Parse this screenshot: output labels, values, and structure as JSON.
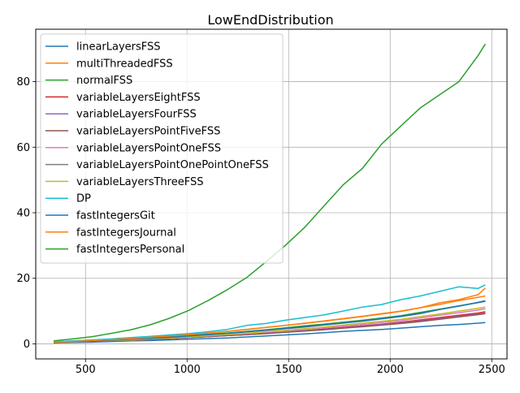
{
  "chart_data": {
    "type": "line",
    "title": "LowEndDistribution",
    "xlabel": "",
    "ylabel": "",
    "xlim": [
      255,
      2575
    ],
    "ylim": [
      -4.6,
      96
    ],
    "xticks": [
      500,
      1000,
      1500,
      2000,
      2500
    ],
    "yticks": [
      0,
      20,
      40,
      60,
      80
    ],
    "grid": true,
    "legend_position": "top-left",
    "x": [
      343,
      438,
      533,
      628,
      723,
      818,
      913,
      1008,
      1103,
      1198,
      1293,
      1388,
      1483,
      1578,
      1673,
      1768,
      1863,
      1958,
      2053,
      2148,
      2243,
      2338,
      2433,
      2468
    ],
    "series": [
      {
        "name": "linearLayersFSS",
        "color": "#1f77b4",
        "values": [
          0.3,
          0.4,
          0.5,
          0.7,
          0.9,
          1.0,
          1.2,
          1.4,
          1.6,
          1.8,
          2.1,
          2.4,
          2.7,
          3.0,
          3.4,
          3.8,
          4.1,
          4.4,
          4.8,
          5.2,
          5.6,
          5.9,
          6.3,
          6.5
        ]
      },
      {
        "name": "multiThreadedFSS",
        "color": "#ff7f0e",
        "values": [
          0.5,
          0.7,
          1.0,
          1.3,
          1.6,
          1.9,
          2.3,
          2.7,
          3.2,
          3.8,
          4.4,
          5.0,
          5.6,
          6.2,
          6.9,
          7.6,
          8.3,
          9.1,
          9.9,
          11.0,
          12.5,
          13.5,
          15.0,
          17.0
        ]
      },
      {
        "name": "normalFSS",
        "color": "#2ca02c",
        "values": [
          0.5,
          0.7,
          0.9,
          1.2,
          1.5,
          1.8,
          2.1,
          2.5,
          2.9,
          3.3,
          3.8,
          4.3,
          4.9,
          5.5,
          6.0,
          6.6,
          7.2,
          7.9,
          8.6,
          9.6,
          10.6,
          11.6,
          12.6,
          13.0
        ]
      },
      {
        "name": "variableLayersEightFSS",
        "color": "#d62728",
        "values": [
          0.4,
          0.5,
          0.7,
          0.9,
          1.1,
          1.3,
          1.6,
          1.9,
          2.2,
          2.5,
          2.8,
          3.2,
          3.6,
          4.0,
          4.5,
          5.0,
          5.5,
          6.0,
          6.6,
          7.3,
          8.0,
          8.7,
          9.4,
          9.8
        ]
      },
      {
        "name": "variableLayersFourFSS",
        "color": "#9467bd",
        "values": [
          0.4,
          0.5,
          0.7,
          0.9,
          1.1,
          1.3,
          1.6,
          1.9,
          2.2,
          2.5,
          2.8,
          3.2,
          3.6,
          4.0,
          4.4,
          4.9,
          5.4,
          5.9,
          6.4,
          7.0,
          7.7,
          8.4,
          9.1,
          9.4
        ]
      },
      {
        "name": "variableLayersPointFiveFSS",
        "color": "#8c564b",
        "values": [
          0.4,
          0.5,
          0.7,
          0.9,
          1.1,
          1.3,
          1.6,
          1.9,
          2.2,
          2.5,
          2.8,
          3.1,
          3.5,
          3.9,
          4.3,
          4.8,
          5.2,
          5.7,
          6.2,
          6.8,
          7.5,
          8.2,
          8.9,
          9.2
        ]
      },
      {
        "name": "variableLayersPointOneFSS",
        "color": "#e377c2",
        "values": [
          0.4,
          0.6,
          0.8,
          1.0,
          1.2,
          1.5,
          1.8,
          2.1,
          2.4,
          2.8,
          3.1,
          3.5,
          3.9,
          4.4,
          4.9,
          5.4,
          5.9,
          6.5,
          7.1,
          7.9,
          8.7,
          9.5,
          10.3,
          10.7
        ]
      },
      {
        "name": "variableLayersPointOnePointOneFSS",
        "color": "#7f7f7f",
        "values": [
          0.5,
          0.7,
          0.9,
          1.1,
          1.4,
          1.7,
          2.0,
          2.4,
          2.8,
          3.2,
          3.6,
          4.1,
          4.6,
          5.1,
          5.7,
          6.3,
          6.9,
          7.6,
          8.3,
          9.2,
          10.5,
          11.5,
          12.7,
          13.2
        ]
      },
      {
        "name": "variableLayersThreeFSS",
        "color": "#bcbd22",
        "values": [
          0.4,
          0.6,
          0.8,
          1.0,
          1.2,
          1.5,
          1.8,
          2.1,
          2.5,
          2.9,
          3.2,
          3.7,
          4.1,
          4.6,
          5.1,
          5.7,
          6.3,
          6.9,
          7.5,
          8.3,
          9.1,
          10.0,
          10.8,
          11.2
        ]
      },
      {
        "name": "DP",
        "color": "#17becf",
        "values": [
          0.6,
          0.9,
          1.2,
          1.5,
          1.9,
          2.3,
          2.7,
          3.1,
          3.7,
          4.4,
          5.6,
          6.2,
          7.2,
          8.0,
          8.8,
          10.0,
          11.2,
          12.0,
          13.5,
          14.6,
          16.0,
          17.4,
          16.9,
          18.0
        ]
      },
      {
        "name": "fastIntegersGit",
        "color": "#1f77b4",
        "values": [
          0.4,
          0.6,
          0.8,
          1.1,
          1.4,
          1.7,
          2.0,
          2.4,
          2.8,
          3.2,
          3.7,
          4.2,
          4.7,
          5.2,
          5.8,
          6.4,
          7.0,
          7.7,
          8.4,
          9.3,
          10.5,
          11.5,
          12.6,
          13.0
        ]
      },
      {
        "name": "fastIntegersJournal",
        "color": "#ff7f0e",
        "values": [
          0.5,
          0.7,
          1.0,
          1.3,
          1.6,
          2.0,
          2.4,
          2.8,
          3.3,
          3.8,
          4.4,
          5.0,
          5.6,
          6.3,
          7.0,
          7.7,
          8.4,
          9.2,
          10.0,
          11.0,
          12.0,
          13.2,
          14.2,
          14.6
        ]
      },
      {
        "name": "fastIntegersPersonal",
        "color": "#2ca02c",
        "values": [
          0.9,
          1.5,
          2.2,
          3.2,
          4.3,
          5.8,
          7.8,
          10.2,
          13.2,
          16.5,
          20.2,
          25.0,
          30.0,
          35.5,
          42.0,
          48.5,
          53.5,
          61.0,
          66.5,
          72.0,
          76.0,
          80.0,
          88.0,
          91.5
        ]
      }
    ]
  }
}
